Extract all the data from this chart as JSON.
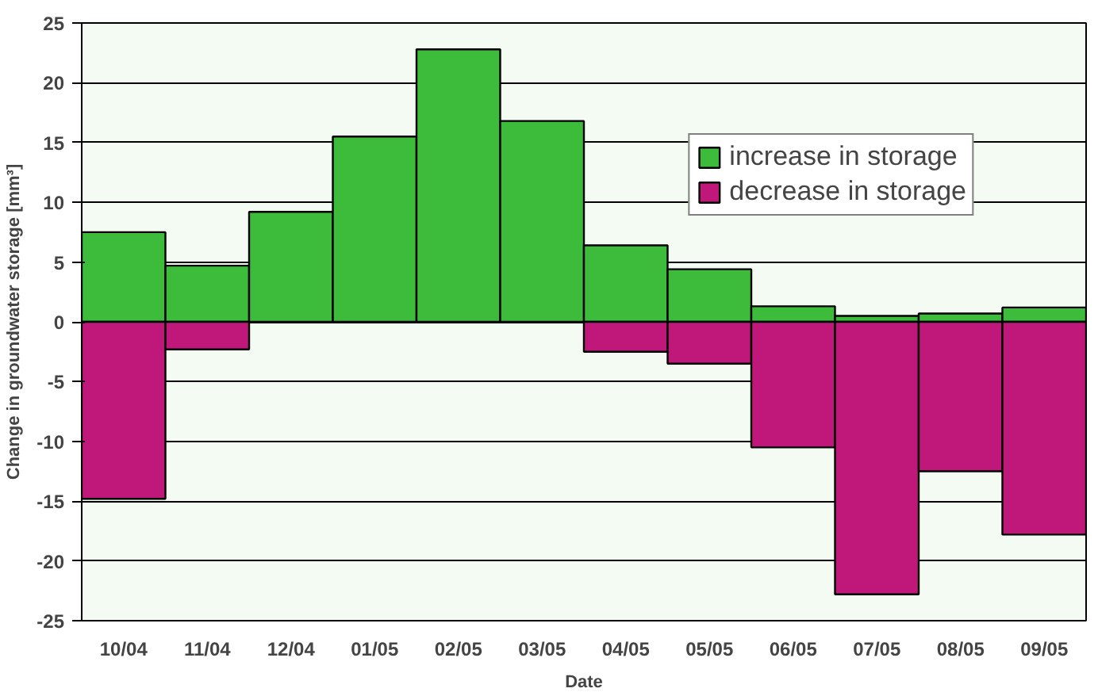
{
  "chart_data": {
    "type": "bar",
    "stacked": true,
    "xlabel": "Date",
    "ylabel": "Change in groundwater storage [mm³]",
    "categories": [
      "10/04",
      "11/04",
      "12/04",
      "01/05",
      "02/05",
      "03/05",
      "04/05",
      "05/05",
      "06/05",
      "07/05",
      "08/05",
      "09/05"
    ],
    "series": [
      {
        "name": "increase in storage",
        "color": "#3dbb3a",
        "values": [
          7.5,
          4.7,
          9.2,
          15.5,
          22.8,
          16.8,
          6.4,
          4.4,
          1.3,
          0.5,
          0.7,
          1.2
        ]
      },
      {
        "name": "decrease in storage",
        "color": "#c0187a",
        "values": [
          -14.8,
          -2.3,
          null,
          null,
          null,
          null,
          -2.5,
          -3.5,
          -10.5,
          -22.8,
          -12.5,
          -17.8
        ]
      }
    ],
    "ylim": [
      -25,
      25
    ],
    "yticks": [
      -25,
      -20,
      -15,
      -10,
      -5,
      0,
      5,
      10,
      15,
      20,
      25
    ],
    "grid": "y",
    "legend": "top right"
  }
}
